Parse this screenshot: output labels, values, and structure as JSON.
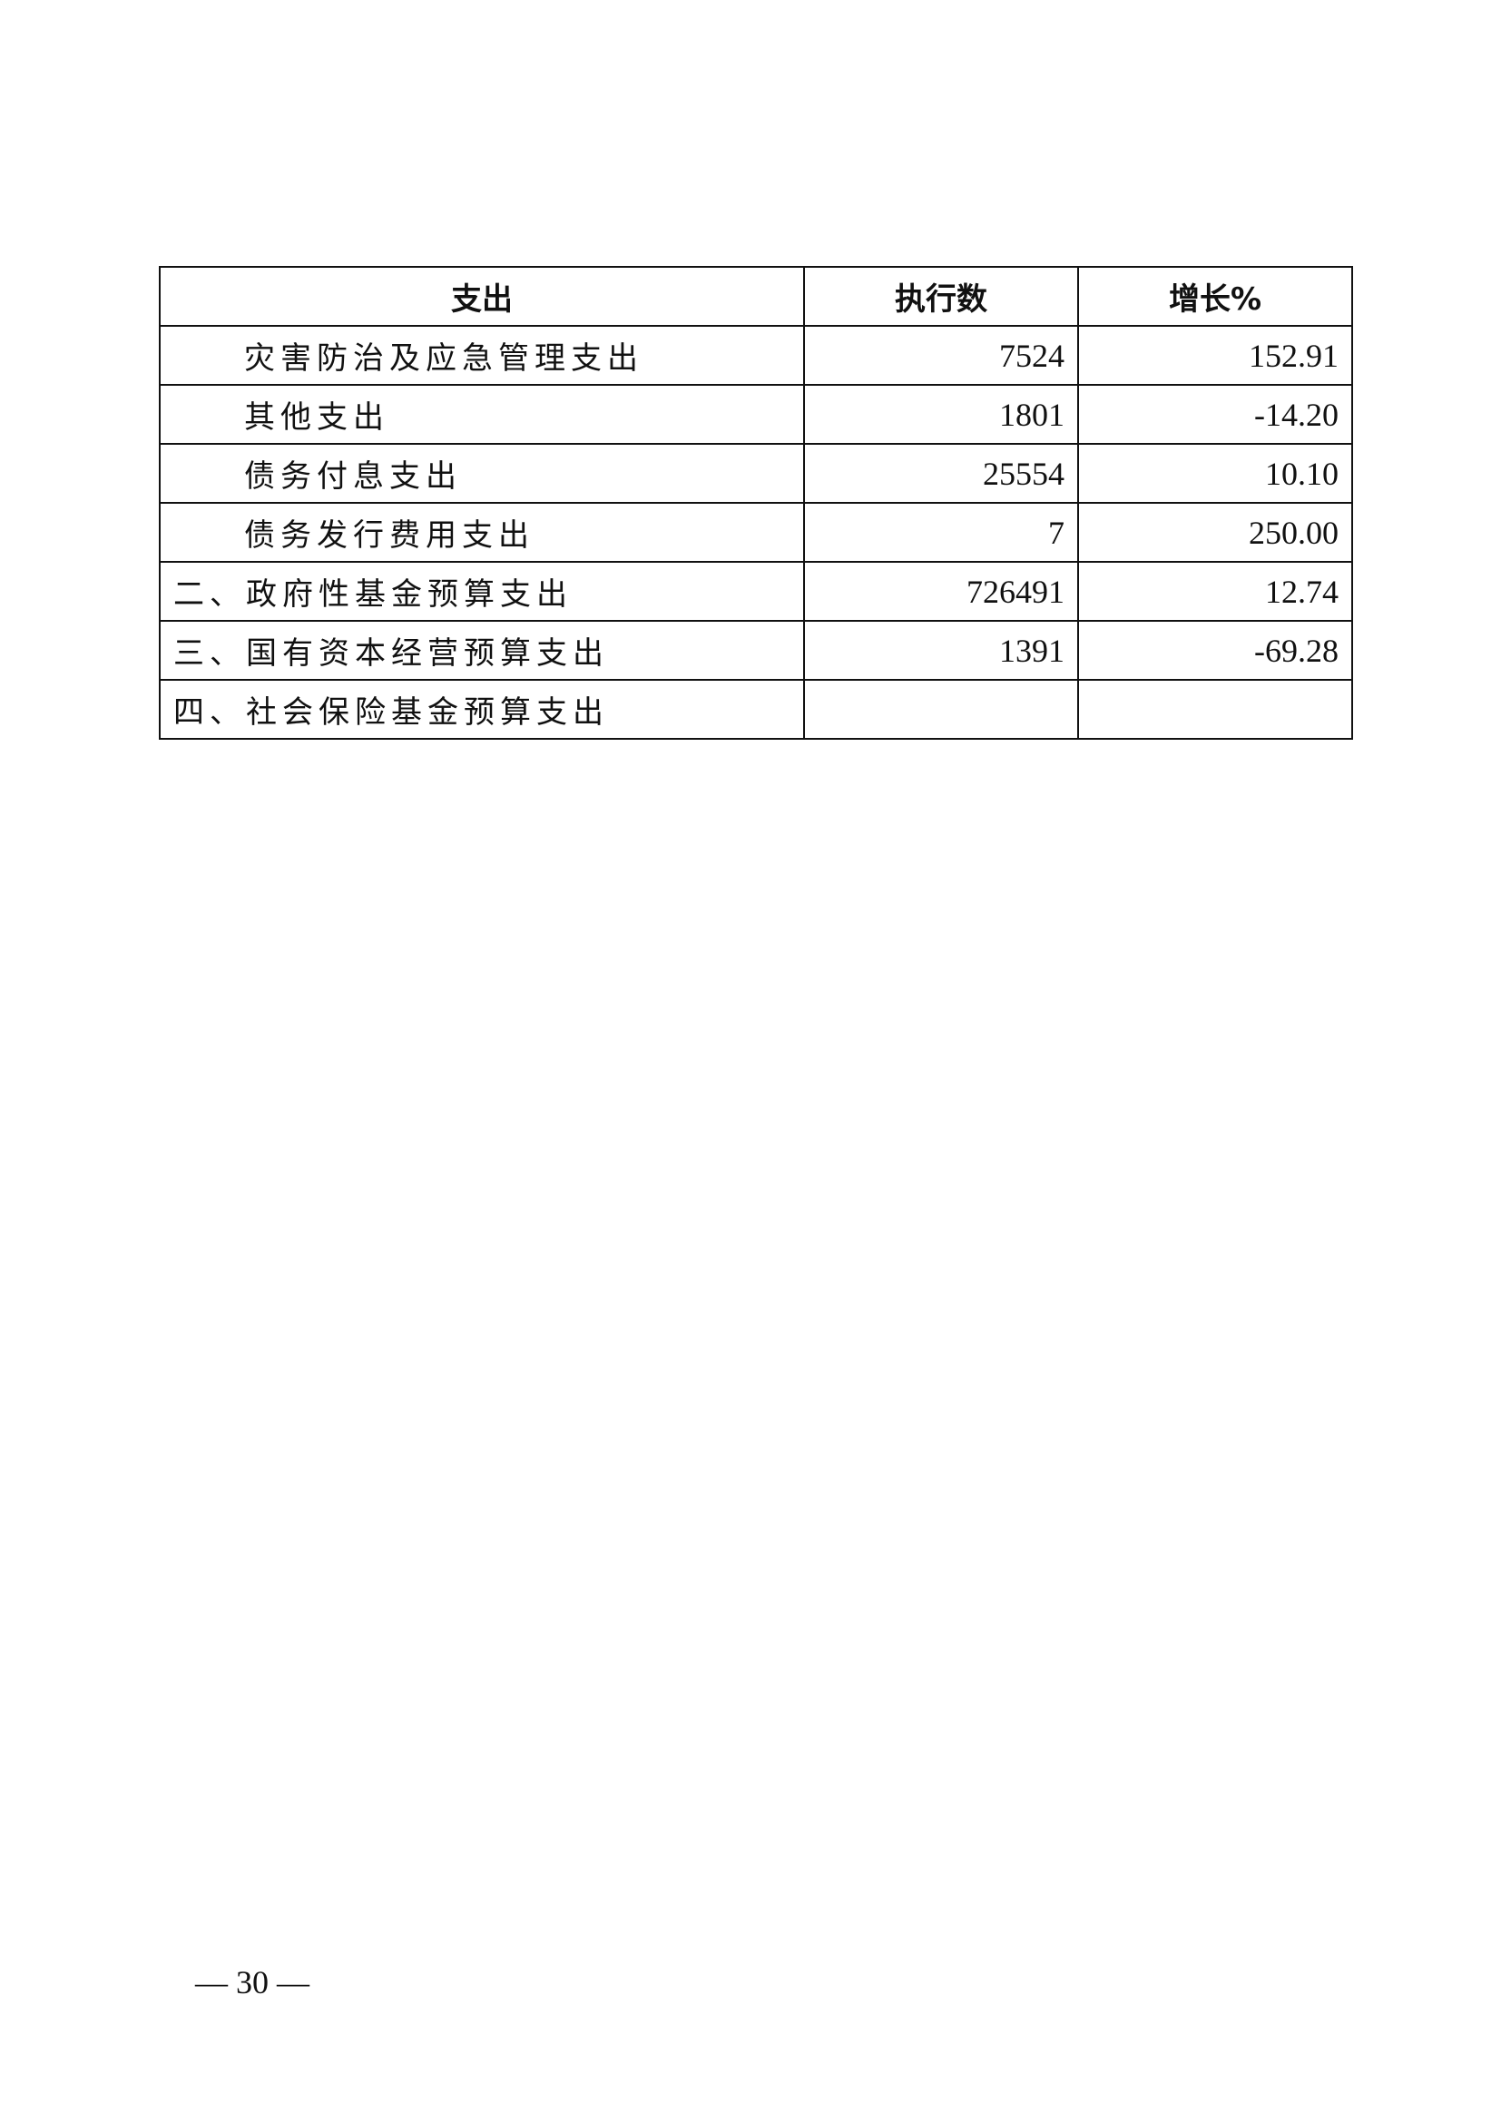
{
  "table": {
    "headers": [
      "支出",
      "执行数",
      "增长%"
    ],
    "rows": [
      {
        "name": "灾害防治及应急管理支出",
        "amount": "7524",
        "growth": "152.91",
        "indent": true
      },
      {
        "name": "其他支出",
        "amount": "1801",
        "growth": "-14.20",
        "indent": true
      },
      {
        "name": "债务付息支出",
        "amount": "25554",
        "growth": "10.10",
        "indent": true
      },
      {
        "name": "债务发行费用支出",
        "amount": "7",
        "growth": "250.00",
        "indent": true
      },
      {
        "name": "二、政府性基金预算支出",
        "amount": "726491",
        "growth": "12.74",
        "indent": false
      },
      {
        "name": "三、国有资本经营预算支出",
        "amount": "1391",
        "growth": "-69.28",
        "indent": false
      },
      {
        "name": "四、社会保险基金预算支出",
        "amount": "",
        "growth": "",
        "indent": false
      }
    ]
  },
  "page_number": "— 30 —"
}
